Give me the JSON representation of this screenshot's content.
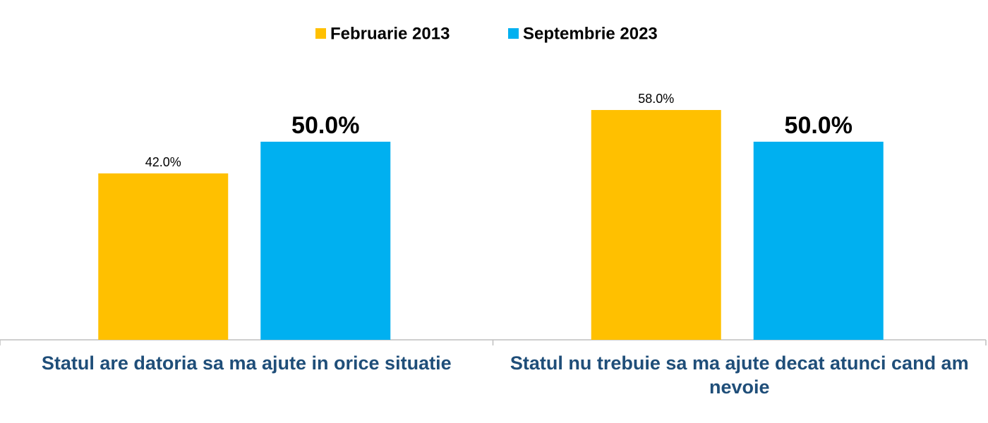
{
  "chart_data": {
    "type": "bar",
    "categories": [
      "Statul are datoria sa ma ajute in orice situatie",
      "Statul nu trebuie sa ma ajute decat atunci cand am nevoie"
    ],
    "series": [
      {
        "name": "Februarie 2013",
        "color": "#ffc000",
        "values": [
          42,
          58
        ],
        "value_labels": [
          "42.0%",
          "58.0%"
        ]
      },
      {
        "name": "Septembrie 2023",
        "color": "#00b0f0",
        "values": [
          50,
          50
        ],
        "value_labels": [
          "50.0%",
          "50.0%"
        ]
      }
    ]
  }
}
